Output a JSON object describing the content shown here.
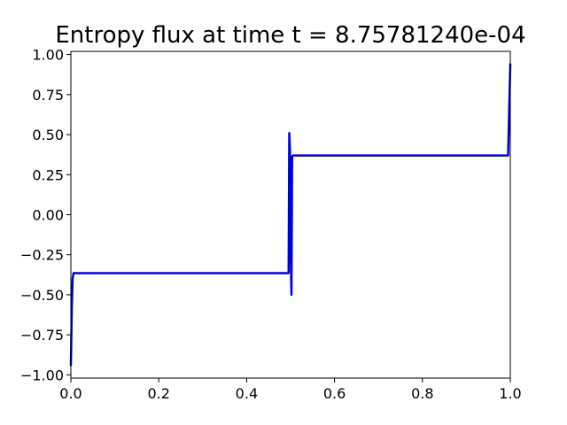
{
  "chart_data": {
    "type": "line",
    "title": "Entropy flux at time t = 8.75781240e-04",
    "xlabel": "",
    "ylabel": "",
    "xlim": [
      0.0,
      1.0
    ],
    "ylim": [
      -1.02,
      1.02
    ],
    "x_ticks": [
      0.0,
      0.2,
      0.4,
      0.6,
      0.8,
      1.0
    ],
    "x_tick_labels": [
      "0.0",
      "0.2",
      "0.4",
      "0.6",
      "0.8",
      "1.0"
    ],
    "y_ticks": [
      1.0,
      0.75,
      0.5,
      0.25,
      0.0,
      -0.25,
      -0.5,
      -0.75,
      -1.0
    ],
    "y_tick_labels": [
      "1.00",
      "0.75",
      "0.50",
      "0.25",
      "0.00",
      "−0.25",
      "−0.50",
      "−0.75",
      "−1.00"
    ],
    "grid": false,
    "legend": "none",
    "series": [
      {
        "color": "#0000dd",
        "x": [
          0.0,
          0.002,
          0.004,
          0.006,
          0.1,
          0.2,
          0.3,
          0.4,
          0.49,
          0.493,
          0.4955,
          0.497,
          0.4985,
          0.5005,
          0.502,
          0.5035,
          0.505,
          0.507,
          0.6,
          0.7,
          0.8,
          0.9,
          0.993,
          0.995,
          0.997,
          1.0
        ],
        "y": [
          -0.94,
          -0.6,
          -0.4,
          -0.365,
          -0.365,
          -0.365,
          -0.365,
          -0.365,
          -0.365,
          -0.365,
          -0.365,
          0.51,
          0.41,
          -0.25,
          -0.5,
          0.36,
          0.37,
          0.37,
          0.37,
          0.37,
          0.37,
          0.37,
          0.37,
          0.37,
          0.6,
          0.94
        ]
      }
    ]
  }
}
